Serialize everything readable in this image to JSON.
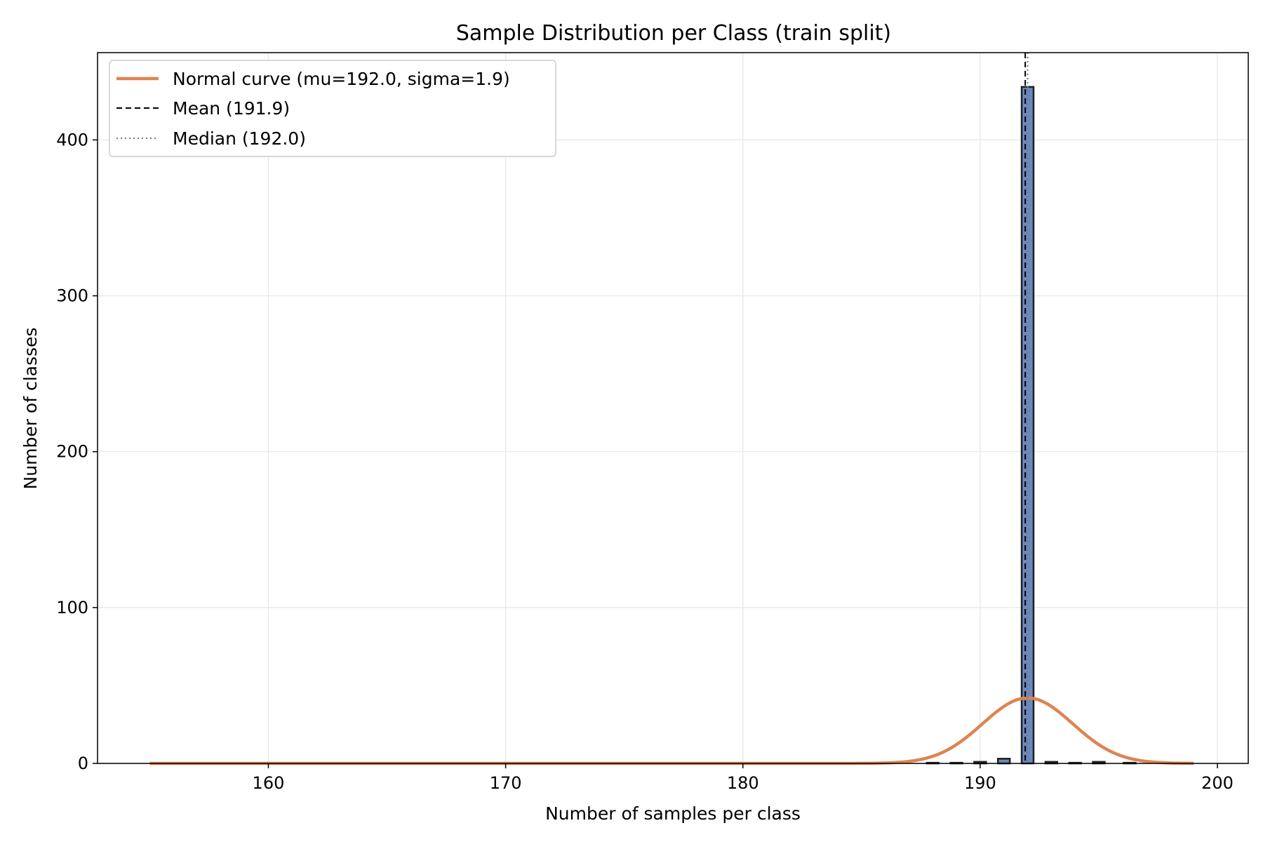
{
  "chart_data": {
    "type": "bar",
    "title": "Sample Distribution per Class (train split)",
    "xlabel": "Number of samples per class",
    "ylabel": "Number of classes",
    "xlim": [
      152.8,
      201.3
    ],
    "ylim": [
      0,
      456
    ],
    "xticks": [
      160,
      170,
      180,
      190,
      200
    ],
    "yticks": [
      0,
      100,
      200,
      300,
      400
    ],
    "grid": true,
    "bin_width": 0.5,
    "bins": [
      {
        "x": 188.0,
        "count": 0.4
      },
      {
        "x": 189.0,
        "count": 0.4
      },
      {
        "x": 190.0,
        "count": 1
      },
      {
        "x": 191.0,
        "count": 3
      },
      {
        "x": 192.0,
        "count": 434
      },
      {
        "x": 193.0,
        "count": 1
      },
      {
        "x": 194.0,
        "count": 0.4
      },
      {
        "x": 195.0,
        "count": 1
      },
      {
        "x": 196.3,
        "count": 0.4
      }
    ],
    "normal_curve": {
      "name": "Normal curve (mu=192.0, sigma=1.9)",
      "mu": 192.0,
      "sigma": 1.9,
      "peak": 42,
      "x_range": [
        155,
        199
      ]
    },
    "mean": {
      "name": "Mean (191.9)",
      "value": 191.9
    },
    "median": {
      "name": "Median (192.0)",
      "value": 192.0
    },
    "legend_position": "upper-left",
    "colors": {
      "bar": "#6a89bf",
      "bar_edge": "#1f1f1f",
      "curve": "#dd8452",
      "mean": "#000000",
      "median": "#777777",
      "grid": "#e6e6e6"
    }
  }
}
